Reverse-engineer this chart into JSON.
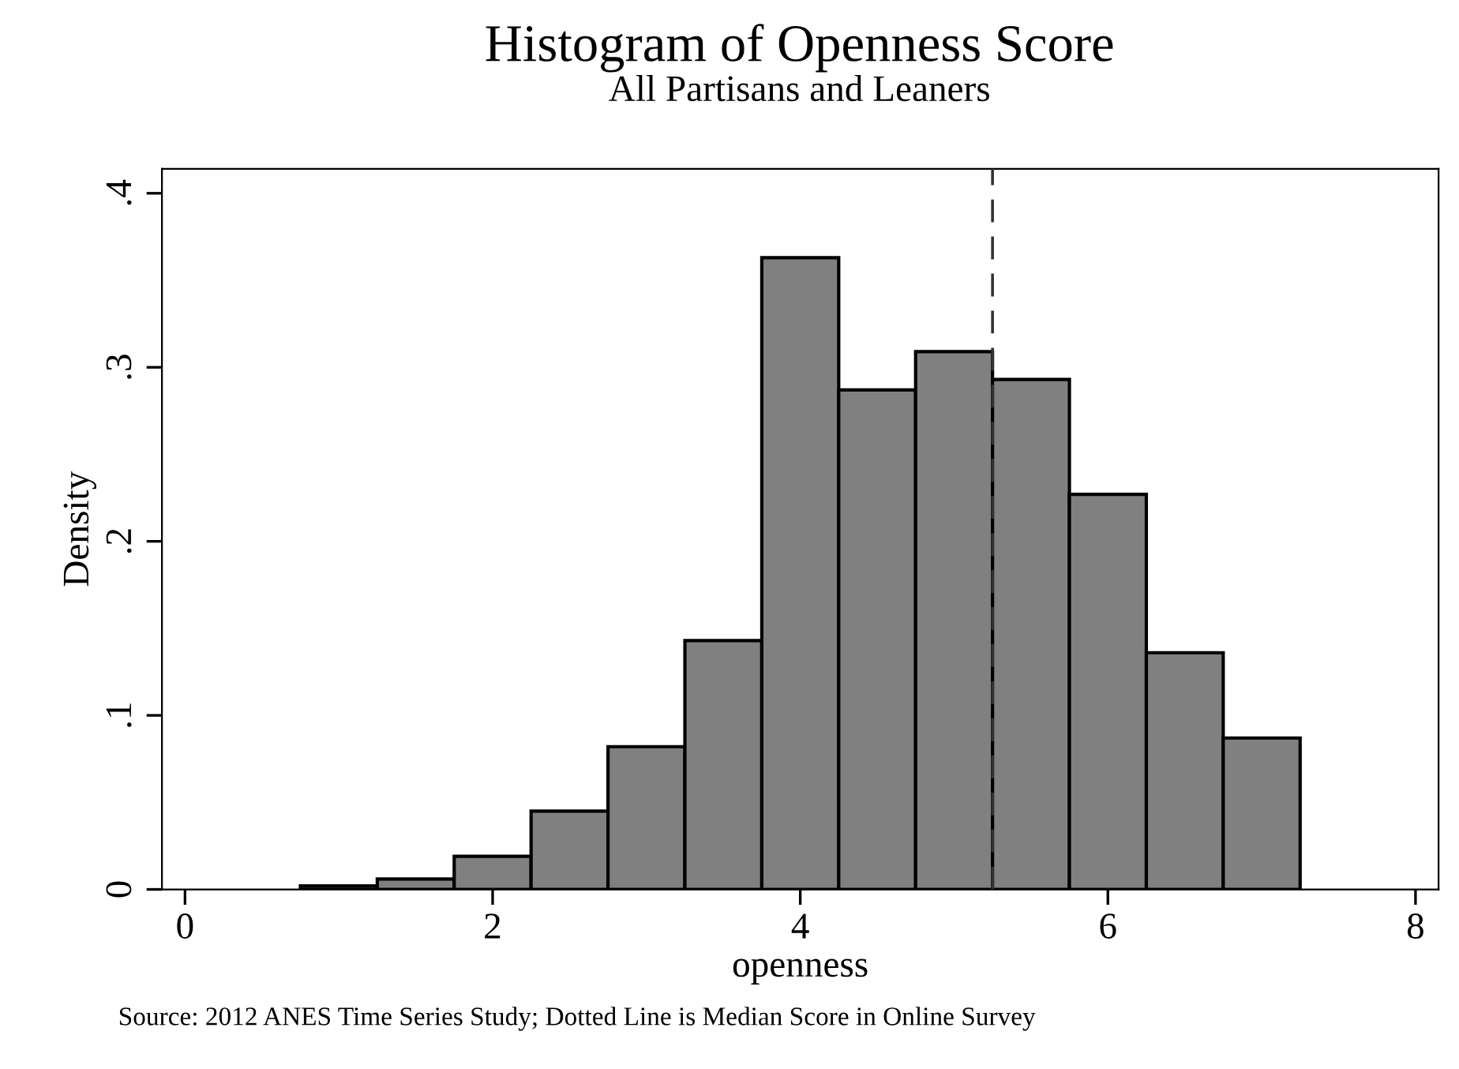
{
  "chart_data": {
    "type": "histogram",
    "title": "Histogram of Openness Score",
    "subtitle": "All Partisans and Leaners",
    "xlabel": "openness",
    "ylabel": "Density",
    "bins": [
      0.75,
      1.25,
      1.75,
      2.25,
      2.75,
      3.25,
      3.75,
      4.25,
      4.75,
      5.25,
      5.75,
      6.25,
      6.75,
      7.25
    ],
    "values": [
      0.002,
      0.006,
      0.019,
      0.045,
      0.082,
      0.143,
      0.363,
      0.287,
      0.309,
      0.293,
      0.227,
      0.136,
      0.087
    ],
    "color": "#808080",
    "xlim": [
      -0.15,
      8.15
    ],
    "xticks": [
      0,
      2,
      4,
      6,
      8
    ],
    "ylim": [
      0,
      0.414
    ],
    "yticks": [
      {
        "value": 0,
        "label": "0"
      },
      {
        "value": 0.1,
        "label": ".1"
      },
      {
        "value": 0.2,
        "label": ".2"
      },
      {
        "value": 0.3,
        "label": ".3"
      },
      {
        "value": 0.4,
        "label": ".4"
      }
    ],
    "ref_lines": [
      {
        "axis": "x",
        "value": 5.25,
        "line_style": "dashed",
        "color": "#333333"
      }
    ],
    "annotations": [
      "Source: 2012 ANES Time Series Study; Dotted Line is Median Score in Online Survey"
    ],
    "grid": false,
    "legend": false
  }
}
